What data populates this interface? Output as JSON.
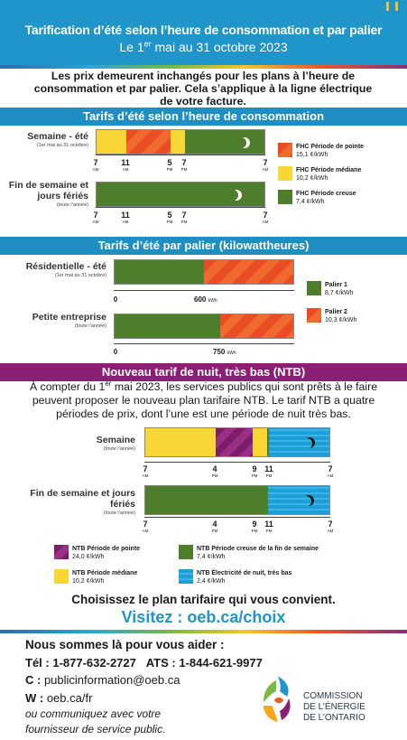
{
  "header": {
    "title": "Tarification d’été selon l’heure de consommation et par palier",
    "subtitle_pre": "Le 1",
    "subtitle_sup": "er",
    "subtitle_post": " mai au 31 octobre 2023"
  },
  "intro": "Les prix demeurent inchangés pour les plans à l’heure de consommation et par palier. Cela s’applique à la ligne électrique de votre facture.",
  "tou": {
    "title": "Tarifs d’été selon l’heure de consommation",
    "rows": [
      {
        "label": "Semaine - été",
        "note": "(1er mai au 31 octobre)"
      },
      {
        "label": "Fin de semaine et jours fériés",
        "note": "(toute l’année)"
      }
    ],
    "ticks": [
      {
        "num": "7",
        "unit": "AM"
      },
      {
        "num": "11",
        "unit": "AM"
      },
      {
        "num": "5",
        "unit": "PM"
      },
      {
        "num": "7",
        "unit": "PM"
      },
      {
        "num": "7",
        "unit": "AM"
      }
    ],
    "legend": [
      {
        "name": "FHC Période de pointe",
        "rate": "15,1 ¢/kWh"
      },
      {
        "name": "FHC Période médiane",
        "rate": "10,2 ¢/kWh"
      },
      {
        "name": "FHC Période creuse",
        "rate": "7,4 ¢/kWh"
      }
    ]
  },
  "tiered": {
    "title": "Tarifs d’été par palier (kilowattheures)",
    "rows": [
      {
        "label": "Résidentielle - été",
        "note": "(1er mai au 31 octobre)",
        "zero": "0",
        "threshold": "600",
        "unit": "kWh"
      },
      {
        "label": "Petite entreprise",
        "note": "(toute l’année)",
        "zero": "0",
        "threshold": "750",
        "unit": "kWh"
      }
    ],
    "legend": [
      {
        "name": "Palier 1",
        "rate": "8,7 ¢/kWh"
      },
      {
        "name": "Palier 2",
        "rate": "10,3 ¢/kWh"
      }
    ]
  },
  "ntb": {
    "title": "Nouveau tarif de nuit, très bas (NTB)",
    "desc_pre": "À compter du 1",
    "desc_sup": "er",
    "desc_post": " mai 2023, les services publics qui sont prêts à le faire peuvent proposer le nouveau plan tarifaire NTB. Le tarif NTB a quatre périodes de prix, dont l’une est une période de nuit très bas.",
    "rows": [
      {
        "label": "Semaine",
        "note": "(toute l’année)"
      },
      {
        "label": "Fin de semaine et jours fériés",
        "note": "(toute l’année)"
      }
    ],
    "ticks": [
      {
        "num": "7",
        "unit": "AM"
      },
      {
        "num": "4",
        "unit": "PM"
      },
      {
        "num": "9",
        "unit": "PM"
      },
      {
        "num": "11",
        "unit": "PM"
      },
      {
        "num": "7",
        "unit": "AM"
      }
    ],
    "legend": [
      {
        "name": "NTB Période de pointe",
        "rate": "24,0 ¢/kWh"
      },
      {
        "name": "NTB Période creuse de la fin de semaine",
        "rate": "7,4 ¢/kWh"
      },
      {
        "name": "NTB Période médiane",
        "rate": "10,2 ¢/kWh"
      },
      {
        "name": "NTB Électricité de nuit, très bas",
        "rate": "2,4 ¢/kWh"
      }
    ]
  },
  "cta": {
    "choose": "Choisissez le plan tarifaire qui vous convient.",
    "visit": "Visitez : oeb.ca/choix"
  },
  "contact": {
    "heading": "Nous sommes là pour vous aider :",
    "tel_label": "Tél : ",
    "tel": "1-877-632-2727",
    "ats_label": "ATS : ",
    "ats": "1-844-621-9977",
    "email_label": "C : ",
    "email": "publicinformation@oeb.ca",
    "web_label": "W : ",
    "web": "oeb.ca/fr",
    "note1": "ou communiquez avec votre",
    "note2": "fournisseur de service public."
  },
  "logo": {
    "line1": "COMMISSION",
    "line2": "DE L’ÉNERGIE",
    "line3": "DE L’ONTARIO"
  }
}
